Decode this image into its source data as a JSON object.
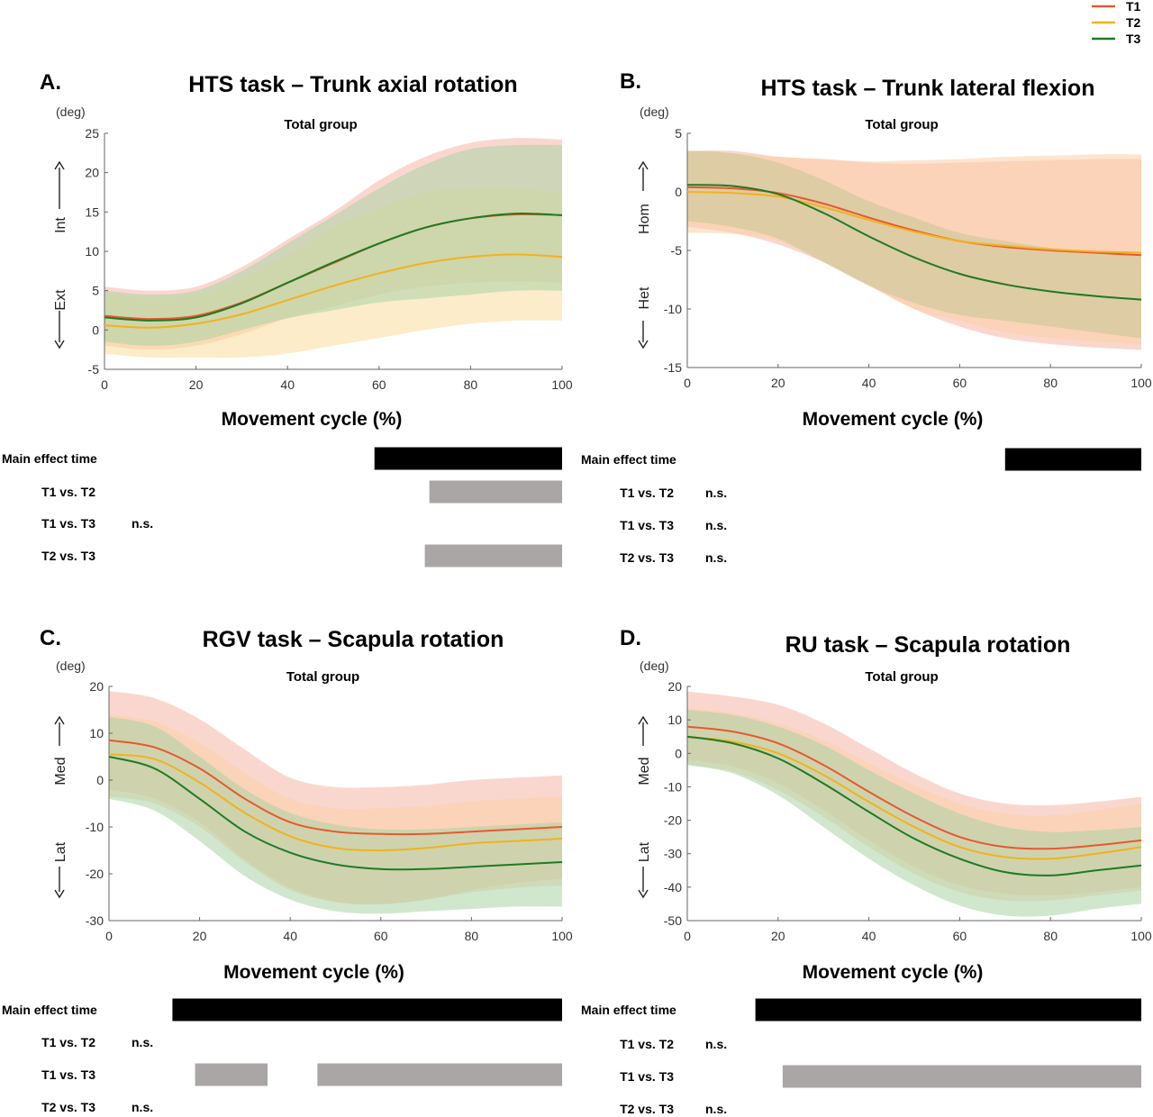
{
  "legend": {
    "position": "top-right",
    "items": [
      {
        "label": "T1",
        "color": "#e8582e"
      },
      {
        "label": "T2",
        "color": "#f2b21b"
      },
      {
        "label": "T3",
        "color": "#1e7a22"
      }
    ]
  },
  "chart_data": [
    {
      "type": "line",
      "letter": "A.",
      "title": "HTS task – Trunk axial rotation",
      "subtitle": "Total group",
      "unit": "(deg)",
      "xlabel": "Movement cycle (%)",
      "direction_up": "Int",
      "direction_down": "Ext",
      "xlim": [
        0,
        100
      ],
      "ylim": [
        -5,
        25
      ],
      "xticks": [
        0,
        20,
        40,
        60,
        80,
        100
      ],
      "yticks": [
        -5,
        0,
        5,
        10,
        15,
        20,
        25
      ],
      "x": [
        0,
        10,
        20,
        30,
        40,
        50,
        60,
        70,
        80,
        90,
        100
      ],
      "series": [
        {
          "name": "T1",
          "color": "#e8582e",
          "fill": "#f6b6a6",
          "values": [
            1.8,
            1.4,
            1.8,
            3.5,
            6.0,
            8.5,
            11.0,
            13.0,
            14.2,
            14.7,
            14.6
          ],
          "lower": [
            -2.0,
            -2.5,
            -2.0,
            -0.5,
            1.5,
            3.0,
            4.5,
            5.5,
            6.0,
            6.2,
            6.0
          ],
          "upper": [
            5.5,
            5.0,
            5.5,
            8.0,
            11.5,
            15.0,
            19.0,
            22.0,
            23.8,
            24.4,
            24.2
          ]
        },
        {
          "name": "T2",
          "color": "#f2b21b",
          "fill": "#fbdc9c",
          "values": [
            0.6,
            0.3,
            0.8,
            2.0,
            3.8,
            5.6,
            7.2,
            8.5,
            9.3,
            9.6,
            9.3
          ],
          "lower": [
            -3.0,
            -3.5,
            -3.5,
            -3.5,
            -3.0,
            -2.0,
            -1.0,
            0.0,
            0.8,
            1.2,
            1.2
          ],
          "upper": [
            4.5,
            4.0,
            4.5,
            6.5,
            9.5,
            13.0,
            15.5,
            17.5,
            18.0,
            18.0,
            17.5
          ]
        },
        {
          "name": "T3",
          "color": "#1e7a22",
          "fill": "#a9d3a6",
          "values": [
            1.6,
            1.2,
            1.6,
            3.4,
            6.0,
            8.6,
            11.0,
            13.0,
            14.2,
            14.8,
            14.6
          ],
          "lower": [
            -1.5,
            -2.0,
            -1.5,
            0.0,
            1.5,
            2.5,
            3.5,
            4.0,
            4.5,
            5.0,
            5.0
          ],
          "upper": [
            5.0,
            4.5,
            5.0,
            7.5,
            11.0,
            14.5,
            18.0,
            21.0,
            23.0,
            23.5,
            23.5
          ]
        }
      ],
      "significance": [
        {
          "label": "Main effect time",
          "color": "#000000",
          "intervals": [
            [
              59,
              100
            ]
          ],
          "ns": false
        },
        {
          "label": "T1 vs. T2",
          "color": "#aaa6a6",
          "intervals": [
            [
              71,
              100
            ]
          ],
          "ns": false
        },
        {
          "label": "T1 vs. T3",
          "color": "#aaa6a6",
          "intervals": [],
          "ns": true,
          "ns_text": "n.s."
        },
        {
          "label": "T2 vs. T3",
          "color": "#aaa6a6",
          "intervals": [
            [
              70,
              100
            ]
          ],
          "ns": false
        }
      ]
    },
    {
      "type": "line",
      "letter": "B.",
      "title": "HTS task – Trunk lateral flexion",
      "subtitle": "Total group",
      "unit": "(deg)",
      "xlabel": "Movement cycle (%)",
      "direction_up": "Hom",
      "direction_down": "Het",
      "xlim": [
        0,
        100
      ],
      "ylim": [
        -15,
        5
      ],
      "xticks": [
        0,
        20,
        40,
        60,
        80,
        100
      ],
      "yticks": [
        -15,
        -10,
        -5,
        0,
        5
      ],
      "x": [
        0,
        10,
        20,
        30,
        40,
        50,
        60,
        70,
        80,
        90,
        100
      ],
      "series": [
        {
          "name": "T1",
          "color": "#e8582e",
          "fill": "#f6b6a6",
          "values": [
            0.4,
            0.3,
            -0.1,
            -1.0,
            -2.2,
            -3.3,
            -4.2,
            -4.7,
            -5.0,
            -5.2,
            -5.4
          ],
          "lower": [
            -3.0,
            -3.5,
            -4.5,
            -6.0,
            -8.0,
            -10.0,
            -11.5,
            -12.5,
            -13.0,
            -13.3,
            -13.5
          ],
          "upper": [
            3.5,
            3.5,
            3.0,
            2.8,
            2.5,
            2.4,
            2.5,
            2.6,
            2.7,
            2.8,
            2.8
          ]
        },
        {
          "name": "T2",
          "color": "#f2b21b",
          "fill": "#fbd0a6",
          "values": [
            0.0,
            -0.1,
            -0.4,
            -1.3,
            -2.4,
            -3.4,
            -4.2,
            -4.6,
            -4.9,
            -5.1,
            -5.2
          ],
          "lower": [
            -3.5,
            -3.6,
            -4.2,
            -6.0,
            -8.0,
            -10.0,
            -11.0,
            -12.0,
            -12.5,
            -12.8,
            -13.0
          ],
          "upper": [
            3.5,
            3.3,
            3.0,
            2.8,
            2.6,
            2.7,
            2.8,
            3.0,
            3.1,
            3.2,
            3.2
          ]
        },
        {
          "name": "T3",
          "color": "#1e7a22",
          "fill": "#c7c695",
          "values": [
            0.6,
            0.5,
            -0.2,
            -1.8,
            -3.8,
            -5.6,
            -7.0,
            -7.9,
            -8.5,
            -8.9,
            -9.2
          ],
          "lower": [
            -2.5,
            -3.0,
            -4.0,
            -6.0,
            -8.0,
            -9.5,
            -10.5,
            -11.0,
            -11.5,
            -12.0,
            -12.5
          ],
          "upper": [
            3.5,
            3.3,
            2.5,
            1.0,
            -0.8,
            -2.2,
            -3.5,
            -4.2,
            -4.8,
            -5.2,
            -5.5
          ]
        }
      ],
      "significance": [
        {
          "label": "Main effect time",
          "color": "#000000",
          "intervals": [
            [
              70,
              100
            ]
          ],
          "ns": false
        },
        {
          "label": "T1 vs. T2",
          "color": "#aaa6a6",
          "intervals": [],
          "ns": true,
          "ns_text": "n.s."
        },
        {
          "label": "T1 vs. T3",
          "color": "#aaa6a6",
          "intervals": [],
          "ns": true,
          "ns_text": "n.s."
        },
        {
          "label": "T2 vs. T3",
          "color": "#aaa6a6",
          "intervals": [],
          "ns": true,
          "ns_text": "n.s."
        }
      ]
    },
    {
      "type": "line",
      "letter": "C.",
      "title": "RGV task – Scapula rotation",
      "subtitle": "Total group",
      "unit": "(deg)",
      "xlabel": "Movement cycle (%)",
      "direction_up": "Med",
      "direction_down": "Lat",
      "xlim": [
        0,
        100
      ],
      "ylim": [
        -30,
        20
      ],
      "xticks": [
        0,
        20,
        40,
        60,
        80,
        100
      ],
      "yticks": [
        -30,
        -20,
        -10,
        0,
        10,
        20
      ],
      "x": [
        0,
        10,
        20,
        30,
        40,
        50,
        60,
        70,
        80,
        90,
        100
      ],
      "series": [
        {
          "name": "T1",
          "color": "#e8582e",
          "fill": "#f6b6a6",
          "values": [
            8.5,
            7.0,
            2.5,
            -4.0,
            -9.0,
            -11.0,
            -11.5,
            -11.5,
            -11.0,
            -10.5,
            -10.0
          ],
          "lower": [
            -2.0,
            -4.0,
            -9.0,
            -17.0,
            -23.0,
            -26.0,
            -26.5,
            -25.5,
            -23.5,
            -22.0,
            -21.0
          ],
          "upper": [
            19.0,
            17.5,
            13.0,
            6.5,
            0.5,
            -1.5,
            -1.5,
            -1.0,
            0.0,
            0.5,
            1.0
          ]
        },
        {
          "name": "T2",
          "color": "#f2b21b",
          "fill": "#fbd0a6",
          "values": [
            5.5,
            4.5,
            -0.5,
            -7.0,
            -12.0,
            -14.5,
            -15.0,
            -14.5,
            -13.5,
            -13.0,
            -12.5
          ],
          "lower": [
            -3.5,
            -5.0,
            -10.0,
            -17.5,
            -23.5,
            -26.0,
            -26.5,
            -25.5,
            -24.0,
            -23.0,
            -22.5
          ],
          "upper": [
            14.0,
            12.5,
            8.0,
            1.5,
            -4.0,
            -6.0,
            -6.0,
            -5.5,
            -4.5,
            -4.0,
            -3.5
          ]
        },
        {
          "name": "T3",
          "color": "#1e7a22",
          "fill": "#a9d3a6",
          "values": [
            5.0,
            2.5,
            -4.0,
            -11.0,
            -15.5,
            -18.0,
            -19.0,
            -19.0,
            -18.5,
            -18.0,
            -17.5
          ],
          "lower": [
            -4.0,
            -6.5,
            -13.0,
            -20.5,
            -25.5,
            -28.0,
            -28.5,
            -28.0,
            -27.5,
            -27.0,
            -27.0
          ],
          "upper": [
            13.5,
            11.5,
            5.0,
            -2.0,
            -7.0,
            -9.5,
            -10.5,
            -10.5,
            -10.0,
            -9.5,
            -9.0
          ]
        }
      ],
      "significance": [
        {
          "label": "Main effect time",
          "color": "#000000",
          "intervals": [
            [
              14,
              100
            ]
          ],
          "ns": false
        },
        {
          "label": "T1 vs. T2",
          "color": "#aaa6a6",
          "intervals": [],
          "ns": true,
          "ns_text": "n.s."
        },
        {
          "label": "T1 vs. T3",
          "color": "#aaa6a6",
          "intervals": [
            [
              19,
              35
            ],
            [
              46,
              100
            ]
          ],
          "ns": false
        },
        {
          "label": "T2 vs. T3",
          "color": "#aaa6a6",
          "intervals": [],
          "ns": true,
          "ns_text": "n.s."
        }
      ]
    },
    {
      "type": "line",
      "letter": "D.",
      "title": "RU task – Scapula rotation",
      "subtitle": "Total group",
      "unit": "(deg)",
      "xlabel": "Movement cycle (%)",
      "direction_up": "Med",
      "direction_down": "Lat",
      "xlim": [
        0,
        100
      ],
      "ylim": [
        -50,
        20
      ],
      "xticks": [
        0,
        20,
        40,
        60,
        80,
        100
      ],
      "yticks": [
        -50,
        -40,
        -30,
        -20,
        -10,
        0,
        10,
        20
      ],
      "x": [
        0,
        10,
        20,
        30,
        40,
        50,
        60,
        70,
        80,
        90,
        100
      ],
      "series": [
        {
          "name": "T1",
          "color": "#e8582e",
          "fill": "#f6b6a6",
          "values": [
            8.0,
            6.5,
            3.0,
            -3.5,
            -11.5,
            -19.0,
            -25.0,
            -28.0,
            -28.5,
            -27.5,
            -26.0
          ],
          "lower": [
            -2.0,
            -4.0,
            -9.0,
            -17.0,
            -26.0,
            -34.0,
            -39.5,
            -42.0,
            -42.5,
            -41.5,
            -40.0
          ],
          "upper": [
            18.5,
            17.0,
            14.5,
            9.0,
            1.5,
            -6.0,
            -12.0,
            -15.0,
            -15.5,
            -14.5,
            -13.0
          ]
        },
        {
          "name": "T2",
          "color": "#f2b21b",
          "fill": "#fbd0a6",
          "values": [
            5.0,
            3.5,
            0.0,
            -6.5,
            -14.5,
            -22.0,
            -28.0,
            -31.0,
            -31.5,
            -30.0,
            -28.0
          ],
          "lower": [
            -3.5,
            -5.5,
            -11.0,
            -19.0,
            -28.0,
            -36.0,
            -41.5,
            -44.0,
            -44.0,
            -42.5,
            -41.0
          ],
          "upper": [
            13.5,
            12.0,
            9.0,
            4.0,
            -3.0,
            -9.5,
            -15.0,
            -18.0,
            -18.5,
            -17.0,
            -15.0
          ]
        },
        {
          "name": "T3",
          "color": "#1e7a22",
          "fill": "#a9d3a6",
          "values": [
            5.0,
            3.0,
            -1.5,
            -9.0,
            -17.5,
            -25.5,
            -31.5,
            -35.5,
            -36.5,
            -35.0,
            -33.5
          ],
          "lower": [
            -3.5,
            -6.0,
            -12.5,
            -22.0,
            -31.5,
            -39.5,
            -45.5,
            -48.5,
            -48.5,
            -46.5,
            -45.0
          ],
          "upper": [
            13.0,
            11.5,
            8.0,
            2.5,
            -5.0,
            -12.0,
            -18.0,
            -22.0,
            -23.5,
            -23.0,
            -22.0
          ]
        }
      ],
      "significance": [
        {
          "label": "Main effect time",
          "color": "#000000",
          "intervals": [
            [
              15,
              100
            ]
          ],
          "ns": false
        },
        {
          "label": "T1 vs. T2",
          "color": "#aaa6a6",
          "intervals": [],
          "ns": true,
          "ns_text": "n.s."
        },
        {
          "label": "T1 vs. T3",
          "color": "#aaa6a6",
          "intervals": [
            [
              21,
              100
            ]
          ],
          "ns": false
        },
        {
          "label": "T2 vs. T3",
          "color": "#aaa6a6",
          "intervals": [],
          "ns": true,
          "ns_text": "n.s."
        }
      ]
    }
  ]
}
